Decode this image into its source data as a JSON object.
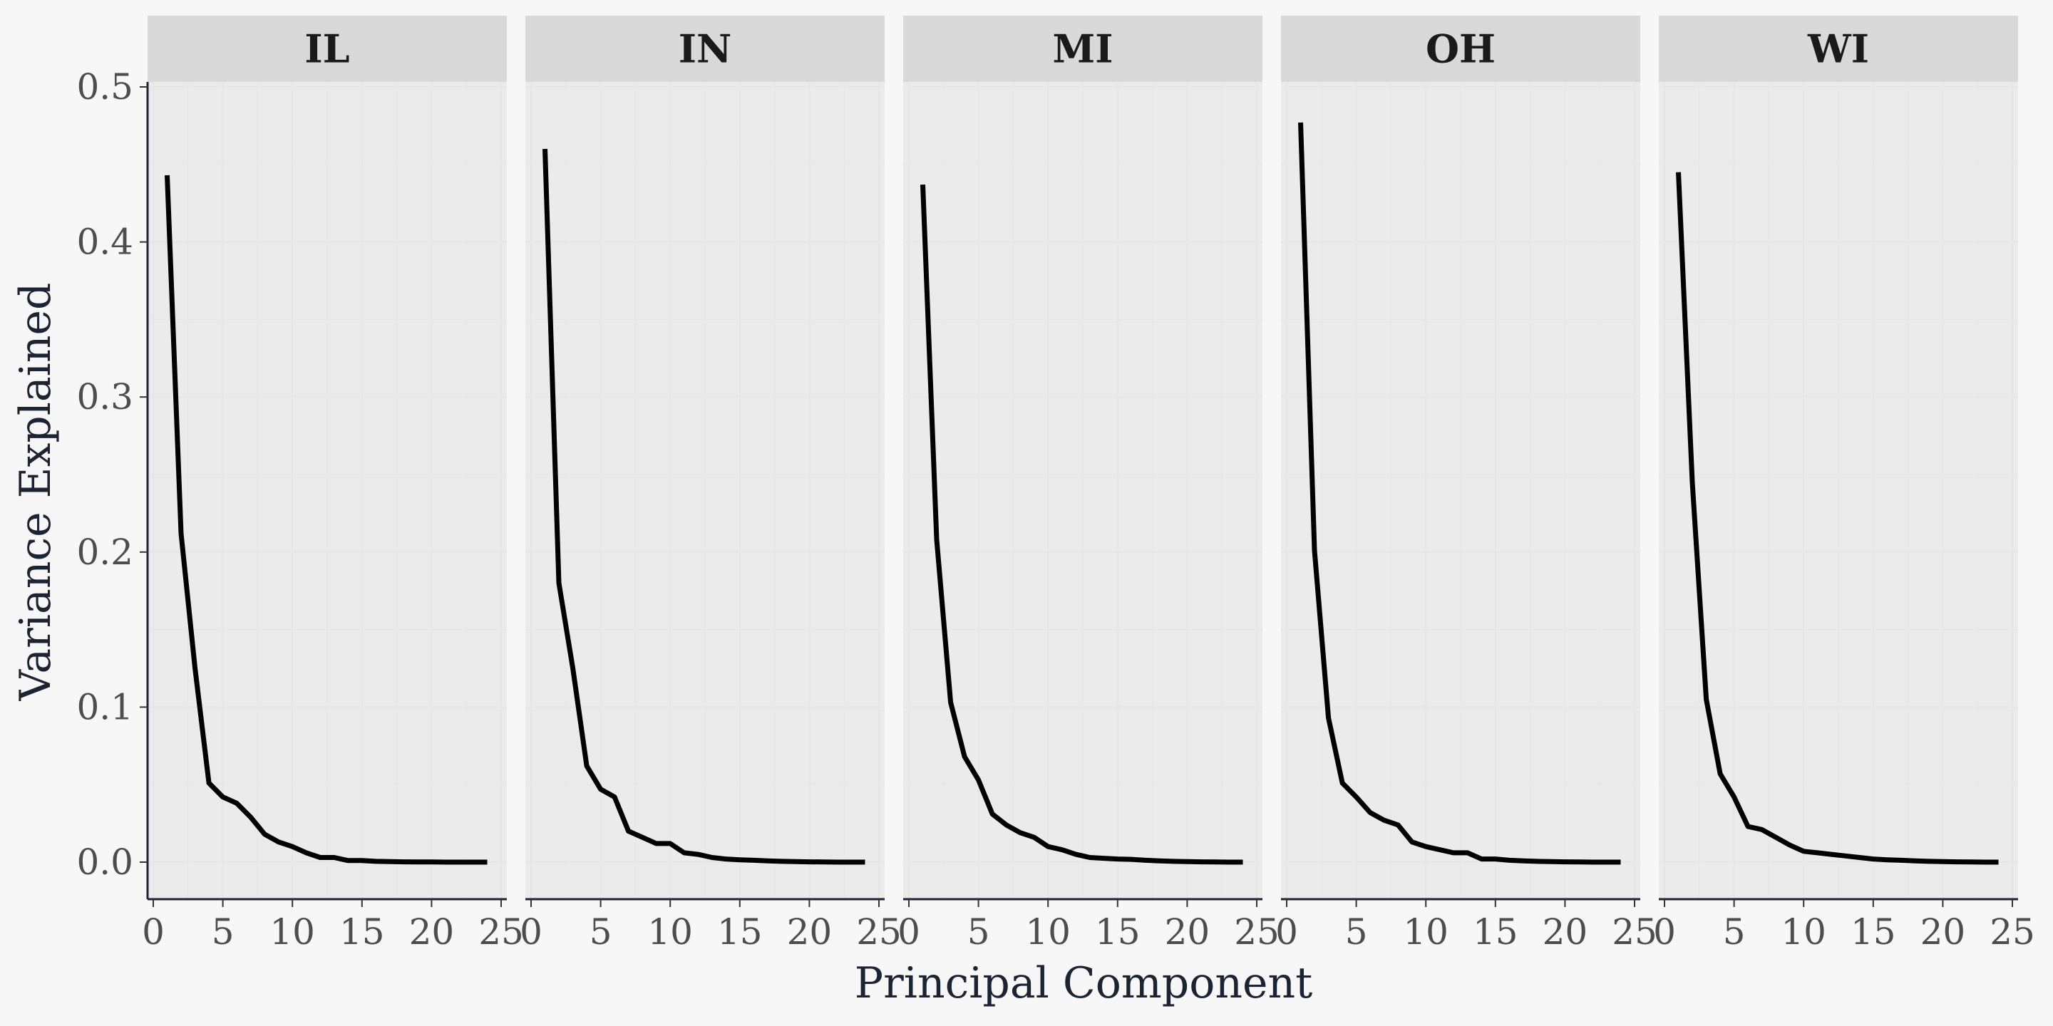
{
  "chart_data": {
    "type": "line",
    "layout": "faceted",
    "xlabel": "Principal Component",
    "ylabel": "Variance Explained",
    "xlim": [
      0,
      25
    ],
    "ylim": [
      -0.023,
      0.5
    ],
    "x_ticks": [
      "0",
      "5",
      "10",
      "15",
      "20",
      "25"
    ],
    "y_ticks": [
      "0.0",
      "0.1",
      "0.2",
      "0.3",
      "0.4",
      "0.5"
    ],
    "x_tick_values": [
      0,
      5,
      10,
      15,
      20,
      25
    ],
    "y_tick_values": [
      0,
      0.1,
      0.2,
      0.3,
      0.4,
      0.5
    ],
    "grid": true,
    "line_color": "#000000",
    "panel_background": "#ebebeb",
    "strip_background": "#d9d9d9",
    "x": [
      1,
      2,
      3,
      4,
      5,
      6,
      7,
      8,
      9,
      10,
      11,
      12,
      13,
      14,
      15,
      16,
      17,
      18,
      19,
      20,
      21,
      22,
      23,
      24
    ],
    "facets": [
      {
        "name": "IL",
        "values": [
          0.443,
          0.212,
          0.125,
          0.051,
          0.042,
          0.038,
          0.029,
          0.018,
          0.013,
          0.01,
          0.006,
          0.003,
          0.003,
          0.001,
          0.001,
          0.0005,
          0.0003,
          0.0002,
          0.0001,
          0.0001,
          0,
          0,
          0,
          0
        ]
      },
      {
        "name": "IN",
        "values": [
          0.46,
          0.18,
          0.125,
          0.062,
          0.047,
          0.042,
          0.02,
          0.016,
          0.012,
          0.012,
          0.006,
          0.005,
          0.003,
          0.002,
          0.0015,
          0.0012,
          0.0008,
          0.0005,
          0.0003,
          0.0002,
          0.0001,
          0,
          0,
          0
        ]
      },
      {
        "name": "MI",
        "values": [
          0.437,
          0.208,
          0.103,
          0.068,
          0.053,
          0.031,
          0.024,
          0.019,
          0.016,
          0.01,
          0.008,
          0.005,
          0.003,
          0.0025,
          0.002,
          0.0018,
          0.0012,
          0.0008,
          0.0005,
          0.0003,
          0.0002,
          0.0001,
          0,
          0
        ]
      },
      {
        "name": "OH",
        "values": [
          0.477,
          0.201,
          0.093,
          0.051,
          0.042,
          0.032,
          0.027,
          0.024,
          0.013,
          0.01,
          0.008,
          0.006,
          0.006,
          0.002,
          0.002,
          0.0012,
          0.0008,
          0.0005,
          0.0003,
          0.0002,
          0.0001,
          0,
          0,
          0
        ]
      },
      {
        "name": "WI",
        "values": [
          0.445,
          0.245,
          0.105,
          0.057,
          0.042,
          0.023,
          0.021,
          0.016,
          0.011,
          0.007,
          0.006,
          0.005,
          0.004,
          0.003,
          0.002,
          0.0015,
          0.0012,
          0.0008,
          0.0005,
          0.0003,
          0.0002,
          0.0001,
          0,
          0
        ]
      }
    ]
  }
}
